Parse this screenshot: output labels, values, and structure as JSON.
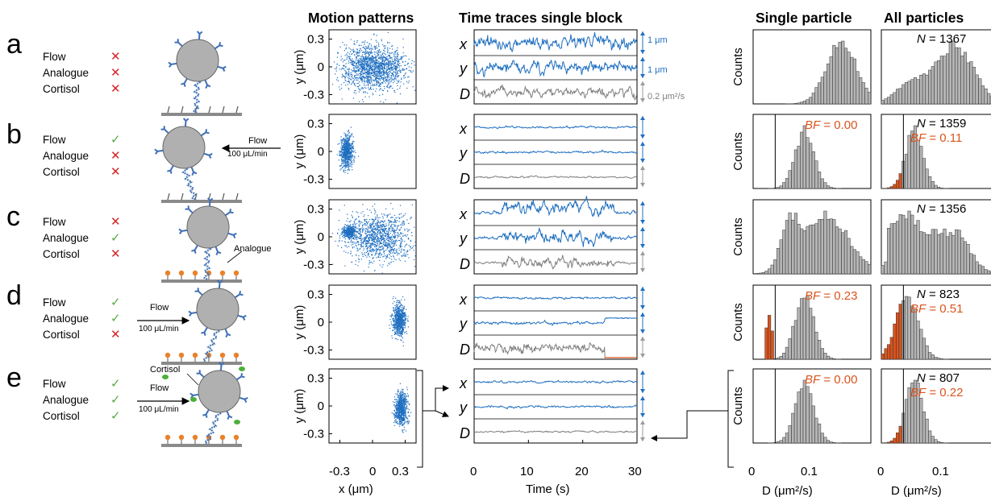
{
  "titles": {
    "motion": "Motion patterns",
    "traces": "Time traces single block",
    "single": "Single particle",
    "all": "All particles"
  },
  "conditions": {
    "labels": [
      "Flow",
      "Analogue",
      "Cortisol"
    ]
  },
  "panels": [
    {
      "letter": "a",
      "flow": "cross",
      "analogue": "cross",
      "cortisol": "cross",
      "N": "1367",
      "bf_single": "",
      "bf_all": "",
      "flow_label": "",
      "flow_rate": ""
    },
    {
      "letter": "b",
      "flow": "check",
      "analogue": "cross",
      "cortisol": "cross",
      "N": "1359",
      "bf_single": "0.00",
      "bf_all": "0.11",
      "flow_label": "Flow",
      "flow_rate": "100 μL/min"
    },
    {
      "letter": "c",
      "flow": "cross",
      "analogue": "check",
      "cortisol": "cross",
      "N": "1356",
      "bf_single": "",
      "bf_all": "",
      "flow_label": "",
      "flow_rate": ""
    },
    {
      "letter": "d",
      "flow": "check",
      "analogue": "check",
      "cortisol": "cross",
      "N": "823",
      "bf_single": "0.23",
      "bf_all": "0.51",
      "flow_label": "Flow",
      "flow_rate": "100 μL/min"
    },
    {
      "letter": "e",
      "flow": "check",
      "analogue": "check",
      "cortisol": "check",
      "N": "807",
      "bf_single": "0.00",
      "bf_all": "0.22",
      "flow_label": "Flow",
      "flow_rate": "100 μL/min"
    }
  ],
  "annotations": {
    "analogue": "Analogue",
    "cortisol": "Cortisol"
  },
  "trace_labels": {
    "x": "x",
    "y": "y",
    "D": "D"
  },
  "scale_bars": {
    "x": "1 μm",
    "y": "1 μm",
    "D": "0.2 μm²/s"
  },
  "labels": {
    "N_prefix": "N",
    "BF_prefix": "BF",
    "counts": "Counts"
  },
  "colors": {
    "blue": "#1f6fc0",
    "gray_trace": "#808080",
    "orange": "#d9541e",
    "bar_gray": "#b5b5b5",
    "cross": "#d42424",
    "check": "#5aa846"
  },
  "chart_data": [
    {
      "type": "scatter",
      "title": "Motion patterns",
      "xlabel": "x (μm)",
      "ylabel": "y (μm)",
      "xlim": [
        -0.4,
        0.4
      ],
      "ylim": [
        -0.4,
        0.4
      ],
      "xticks": [
        "-0.3",
        "0",
        "0.3"
      ],
      "yticks": [
        "0.3",
        "0",
        "-0.3"
      ],
      "clouds": [
        {
          "panel": "a",
          "cx": 0.0,
          "cy": 0.0,
          "sx": 0.15,
          "sy": 0.12,
          "n": 1600
        },
        {
          "panel": "b",
          "cx": -0.24,
          "cy": 0.0,
          "sx": 0.03,
          "sy": 0.08,
          "n": 700
        },
        {
          "panel": "c",
          "cx": 0.05,
          "cy": 0.0,
          "sx": 0.15,
          "sy": 0.13,
          "n": 1200,
          "cluster": {
            "cx": -0.22,
            "cy": 0.06,
            "sx": 0.03,
            "sy": 0.03,
            "n": 400
          }
        },
        {
          "panel": "d",
          "cx": 0.24,
          "cy": 0.02,
          "sx": 0.03,
          "sy": 0.09,
          "n": 700
        },
        {
          "panel": "e",
          "cx": 0.26,
          "cy": -0.02,
          "sx": 0.03,
          "sy": 0.09,
          "n": 700
        }
      ]
    },
    {
      "type": "line",
      "title": "Time traces single block",
      "xlabel": "Time (s)",
      "xlim": [
        0,
        30
      ],
      "xticks": [
        "0",
        "10",
        "20",
        "30"
      ],
      "series": [
        "x",
        "y",
        "D"
      ]
    },
    {
      "type": "bar",
      "title": "Single particle",
      "xlabel": "D (μm²/s)",
      "ylabel": "Counts",
      "xticks": [
        "0",
        "0.1"
      ]
    },
    {
      "type": "bar",
      "title": "All particles",
      "xlabel": "D (μm²/s)",
      "xticks": [
        "0",
        "0.1"
      ]
    }
  ]
}
